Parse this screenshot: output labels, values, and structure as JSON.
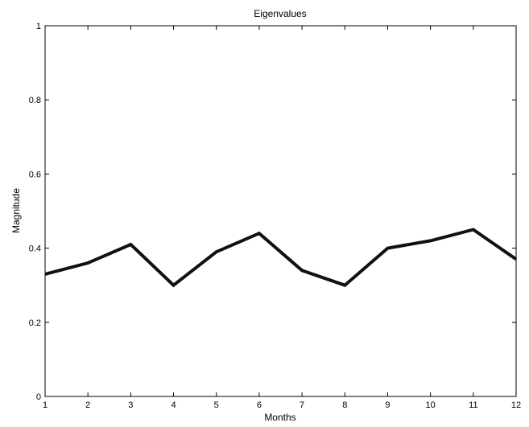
{
  "chart_data": {
    "type": "line",
    "title": "Eigenvalues",
    "xlabel": "Months",
    "ylabel": "Magnitude",
    "xlim": [
      1,
      12
    ],
    "ylim": [
      0,
      1
    ],
    "x_ticks": [
      1,
      2,
      3,
      4,
      5,
      6,
      7,
      8,
      9,
      10,
      11,
      12
    ],
    "x_tick_labels": [
      "1",
      "2",
      "3",
      "4",
      "5",
      "6",
      "7",
      "8",
      "9",
      "10",
      "11",
      "12"
    ],
    "y_ticks": [
      0,
      0.2,
      0.4,
      0.6,
      0.8,
      1
    ],
    "y_tick_labels": [
      "0",
      "0.2",
      "0.4",
      "0.6",
      "0.8",
      "1"
    ],
    "grid": false,
    "legend": "none",
    "line_color": "#111111",
    "series": [
      {
        "x": [
          1,
          2,
          3,
          4,
          5,
          6,
          7,
          8,
          9,
          10,
          11,
          12
        ],
        "values": [
          0.33,
          0.36,
          0.41,
          0.3,
          0.39,
          0.44,
          0.34,
          0.3,
          0.4,
          0.42,
          0.45,
          0.37
        ]
      }
    ]
  }
}
